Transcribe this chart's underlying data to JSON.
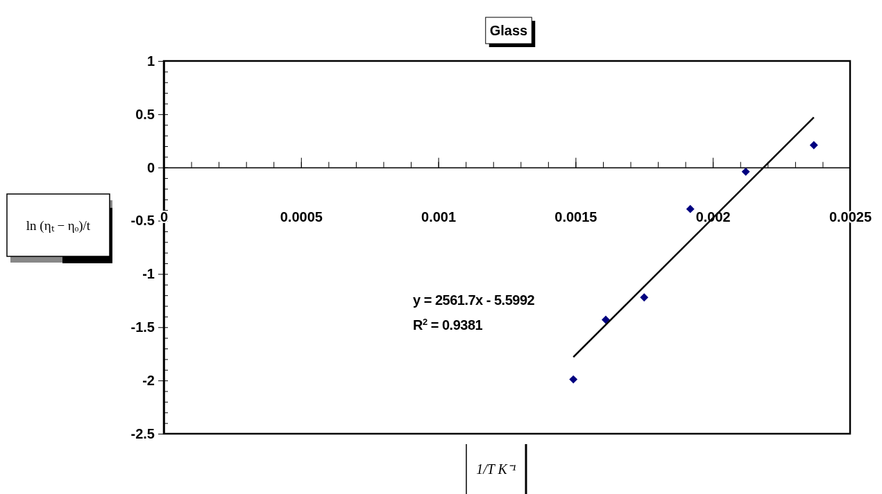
{
  "chart_data": {
    "type": "scatter",
    "title": "Glass",
    "xlabel": "1/T K⁻¹",
    "ylabel": "ln (ηₜ − ηₒ)/t",
    "x": [
      0.001492,
      0.00161,
      0.00175,
      0.001918,
      0.00212,
      0.002368
    ],
    "series": [
      {
        "color": "#000080",
        "marker": "diamond",
        "values": [
          -1.99,
          -1.43,
          -1.22,
          -0.39,
          -0.04,
          0.21
        ]
      },
      {
        "type": "line",
        "color": "#000000",
        "marker": "none",
        "x": [
          0.001492,
          0.002368
        ],
        "values": [
          -1.78,
          0.47
        ]
      }
    ],
    "xlim": [
      0,
      0.0025
    ],
    "xticks": [
      0,
      0.0005,
      0.001,
      0.0015,
      0.002,
      0.0025
    ],
    "ylim": [
      -2.5,
      1
    ],
    "yticks": [
      -2.5,
      -2,
      -1.5,
      -1,
      -0.5,
      0,
      0.5,
      1
    ],
    "annotations": [
      "y = 2561.7x - 5.5992",
      "R$^{2}$ = 0.9381"
    ]
  }
}
